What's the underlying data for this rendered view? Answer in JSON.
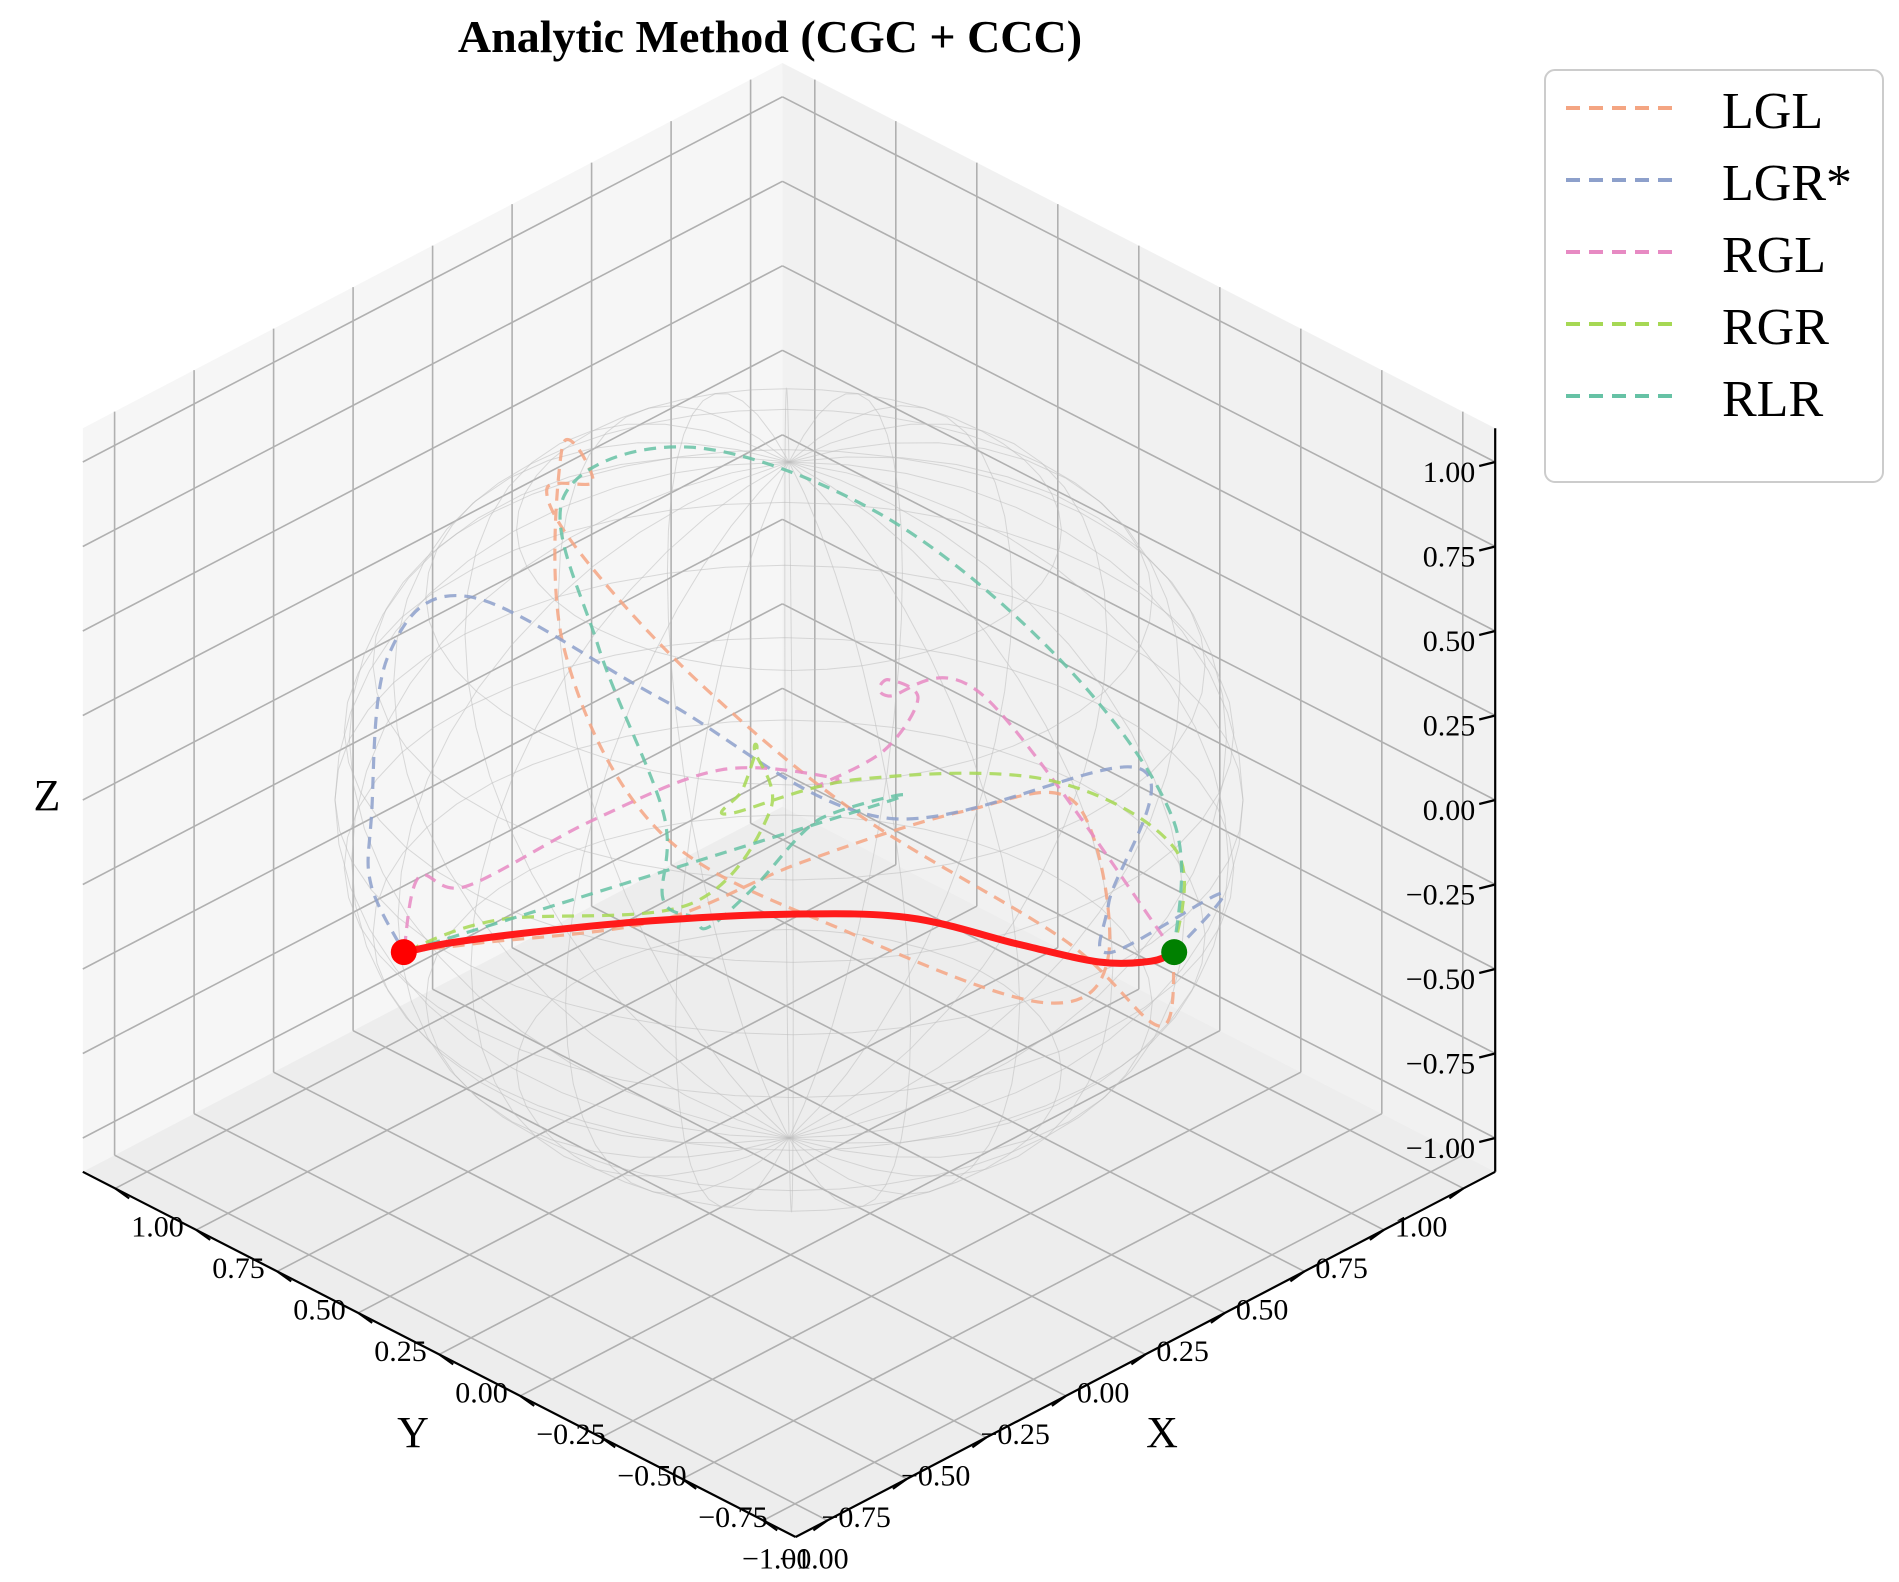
{
  "chart_data": {
    "type": "line3d",
    "title": "Analytic Method (CGC + CCC)",
    "xlabel": "X",
    "ylabel": "Y",
    "zlabel": "Z",
    "xlim": [
      -1.1,
      1.1
    ],
    "ylim": [
      -1.1,
      1.1
    ],
    "zlim": [
      -1.1,
      1.1
    ],
    "xticks": [
      "1.00",
      "0.75",
      "0.50",
      "0.25",
      "0.00",
      "−0.25",
      "−0.50",
      "−0.75",
      "−1.00"
    ],
    "yticks": [
      "1.00",
      "0.75",
      "0.50",
      "0.25",
      "0.00",
      "−0.25",
      "−0.50",
      "−0.75",
      "−1.00"
    ],
    "zticks": [
      "1.00",
      "0.75",
      "0.50",
      "0.25",
      "0.00",
      "−0.25",
      "−0.50",
      "−0.75",
      "−1.00"
    ],
    "grid": true,
    "legend_position": "outside-top-right",
    "unit_sphere_wireframe": true,
    "start_point": {
      "x": -0.6,
      "y": 0.6,
      "z": -0.45,
      "color": "#008000"
    },
    "end_point": {
      "x": 0.6,
      "y": -0.6,
      "z": -0.45,
      "color": "#ff0000"
    },
    "optimal_path": {
      "color": "#ff1a1a",
      "points": [
        [
          -0.6,
          0.6,
          -0.45
        ],
        [
          -0.45,
          0.68,
          -0.59
        ],
        [
          -0.25,
          0.72,
          -0.71
        ],
        [
          0.0,
          0.72,
          -0.78
        ],
        [
          0.25,
          0.63,
          -0.78
        ],
        [
          0.45,
          0.45,
          -0.78
        ],
        [
          0.62,
          0.2,
          -0.76
        ],
        [
          0.73,
          -0.06,
          -0.72
        ],
        [
          0.76,
          -0.3,
          -0.65
        ],
        [
          0.7,
          -0.5,
          -0.55
        ],
        [
          0.6,
          -0.6,
          -0.45
        ]
      ]
    },
    "series": [
      {
        "name": "LGL",
        "color": "#f4a582",
        "points": [
          [
            -0.6,
            0.6,
            -0.45
          ],
          [
            -0.9,
            0.25,
            -0.35
          ],
          [
            -0.95,
            -0.1,
            0.1
          ],
          [
            -0.7,
            -0.5,
            0.55
          ],
          [
            -0.3,
            -0.6,
            0.8
          ],
          [
            0.2,
            -0.45,
            0.85
          ],
          [
            0.6,
            -0.15,
            0.7
          ],
          [
            0.85,
            0.25,
            0.4
          ],
          [
            0.7,
            0.0,
            0.7
          ],
          [
            0.4,
            -0.3,
            0.4
          ],
          [
            0.1,
            -0.3,
            0.0
          ],
          [
            -0.2,
            0.0,
            -0.3
          ],
          [
            -0.4,
            0.4,
            -0.6
          ],
          [
            -0.3,
            0.7,
            -0.65
          ],
          [
            0.0,
            0.9,
            -0.45
          ],
          [
            0.25,
            0.8,
            -0.55
          ],
          [
            0.5,
            0.55,
            -0.7
          ],
          [
            0.6,
            0.2,
            -0.75
          ],
          [
            0.66,
            -0.3,
            -0.6
          ],
          [
            0.6,
            -0.6,
            -0.45
          ]
        ]
      },
      {
        "name": "LGR*",
        "color": "#8da0cb",
        "points": [
          [
            -0.6,
            0.6,
            -0.45
          ],
          [
            -0.65,
            0.7,
            -0.3
          ],
          [
            -0.4,
            0.6,
            -0.55
          ],
          [
            -0.3,
            0.7,
            -0.5
          ],
          [
            -0.15,
            0.95,
            -0.3
          ],
          [
            0.0,
            0.3,
            -0.2
          ],
          [
            0.2,
            -0.2,
            0.3
          ],
          [
            0.4,
            -0.6,
            0.7
          ],
          [
            0.55,
            -0.7,
            0.5
          ],
          [
            0.7,
            -0.6,
            -0.1
          ],
          [
            0.75,
            -0.55,
            -0.35
          ],
          [
            0.6,
            -0.6,
            -0.45
          ]
        ]
      },
      {
        "name": "RGL",
        "color": "#e78ac3",
        "points": [
          [
            -0.6,
            0.6,
            -0.45
          ],
          [
            -0.7,
            -0.1,
            0.7
          ],
          [
            -0.6,
            -0.3,
            0.75
          ],
          [
            -0.5,
            -0.2,
            0.7
          ],
          [
            -0.3,
            0.1,
            0.4
          ],
          [
            0.0,
            0.3,
            0.0
          ],
          [
            0.3,
            0.4,
            -0.3
          ],
          [
            0.45,
            0.6,
            -0.45
          ],
          [
            0.7,
            0.5,
            -0.5
          ],
          [
            0.8,
            0.2,
            -0.55
          ],
          [
            0.8,
            -0.2,
            -0.55
          ],
          [
            0.75,
            -0.4,
            -0.4
          ],
          [
            0.6,
            -0.6,
            -0.45
          ]
        ]
      },
      {
        "name": "RGR",
        "color": "#a6d854",
        "points": [
          [
            -0.6,
            0.6,
            -0.45
          ],
          [
            -0.8,
            0.4,
            0.05
          ],
          [
            -0.9,
            -0.1,
            0.55
          ],
          [
            -0.7,
            -0.5,
            0.65
          ],
          [
            -0.4,
            -0.6,
            0.45
          ],
          [
            -0.2,
            -0.35,
            0.3
          ],
          [
            0.1,
            0.0,
            0.1
          ],
          [
            0.4,
            0.3,
            -0.2
          ],
          [
            0.55,
            0.5,
            -0.55
          ],
          [
            0.6,
            0.3,
            -0.75
          ],
          [
            0.7,
            -0.2,
            -0.6
          ],
          [
            0.6,
            -0.6,
            -0.45
          ]
        ]
      },
      {
        "name": "RLR",
        "color": "#66c2a5",
        "points": [
          [
            -0.6,
            0.6,
            -0.45
          ],
          [
            -0.35,
            0.85,
            -0.3
          ],
          [
            0.0,
            0.85,
            0.0
          ],
          [
            0.3,
            0.6,
            0.4
          ],
          [
            0.5,
            0.2,
            0.7
          ],
          [
            0.4,
            -0.3,
            0.85
          ],
          [
            0.0,
            -0.6,
            0.75
          ],
          [
            -0.3,
            -0.7,
            0.45
          ],
          [
            -0.2,
            -0.6,
            0.1
          ],
          [
            0.0,
            -0.3,
            -0.2
          ],
          [
            0.25,
            0.0,
            -0.5
          ],
          [
            0.45,
            0.35,
            -0.65
          ],
          [
            0.5,
            0.6,
            -0.6
          ],
          [
            0.4,
            0.7,
            -0.55
          ],
          [
            0.6,
            -0.6,
            -0.45
          ]
        ]
      }
    ]
  }
}
